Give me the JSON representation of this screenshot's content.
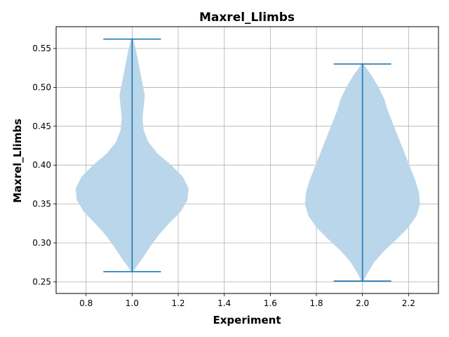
{
  "chart_data": {
    "type": "violin",
    "title": "Maxrel_Llimbs",
    "xlabel": "Experiment",
    "ylabel": "Maxrel_Llimbs",
    "xlim": [
      0.67,
      2.33
    ],
    "ylim": [
      0.235,
      0.578
    ],
    "grid": true,
    "x_ticks": [
      "0.8",
      "1.0",
      "1.2",
      "1.4",
      "1.6",
      "1.8",
      "2.0",
      "2.2"
    ],
    "y_ticks": [
      "0.25",
      "0.30",
      "0.35",
      "0.40",
      "0.45",
      "0.50",
      "0.55"
    ],
    "colors": {
      "violin_fill": "#bad6ea",
      "lines": "#1f77b4",
      "grid": "#b0b0b0"
    },
    "series": [
      {
        "position": 1.0,
        "min": 0.263,
        "max": 0.562,
        "profile": [
          [
            0.263,
            0.004
          ],
          [
            0.27,
            0.02
          ],
          [
            0.28,
            0.045
          ],
          [
            0.295,
            0.078
          ],
          [
            0.31,
            0.115
          ],
          [
            0.325,
            0.16
          ],
          [
            0.34,
            0.21
          ],
          [
            0.355,
            0.24
          ],
          [
            0.37,
            0.245
          ],
          [
            0.385,
            0.22
          ],
          [
            0.4,
            0.17
          ],
          [
            0.415,
            0.11
          ],
          [
            0.43,
            0.07
          ],
          [
            0.445,
            0.05
          ],
          [
            0.46,
            0.045
          ],
          [
            0.475,
            0.05
          ],
          [
            0.49,
            0.055
          ],
          [
            0.505,
            0.045
          ],
          [
            0.52,
            0.035
          ],
          [
            0.535,
            0.025
          ],
          [
            0.55,
            0.015
          ],
          [
            0.562,
            0.004
          ]
        ]
      },
      {
        "position": 2.0,
        "min": 0.251,
        "max": 0.53,
        "profile": [
          [
            0.251,
            0.004
          ],
          [
            0.26,
            0.02
          ],
          [
            0.275,
            0.05
          ],
          [
            0.29,
            0.095
          ],
          [
            0.305,
            0.15
          ],
          [
            0.32,
            0.2
          ],
          [
            0.335,
            0.235
          ],
          [
            0.35,
            0.25
          ],
          [
            0.365,
            0.245
          ],
          [
            0.38,
            0.23
          ],
          [
            0.395,
            0.21
          ],
          [
            0.41,
            0.19
          ],
          [
            0.425,
            0.17
          ],
          [
            0.44,
            0.15
          ],
          [
            0.455,
            0.13
          ],
          [
            0.47,
            0.11
          ],
          [
            0.485,
            0.095
          ],
          [
            0.5,
            0.07
          ],
          [
            0.515,
            0.04
          ],
          [
            0.53,
            0.004
          ]
        ]
      }
    ]
  }
}
